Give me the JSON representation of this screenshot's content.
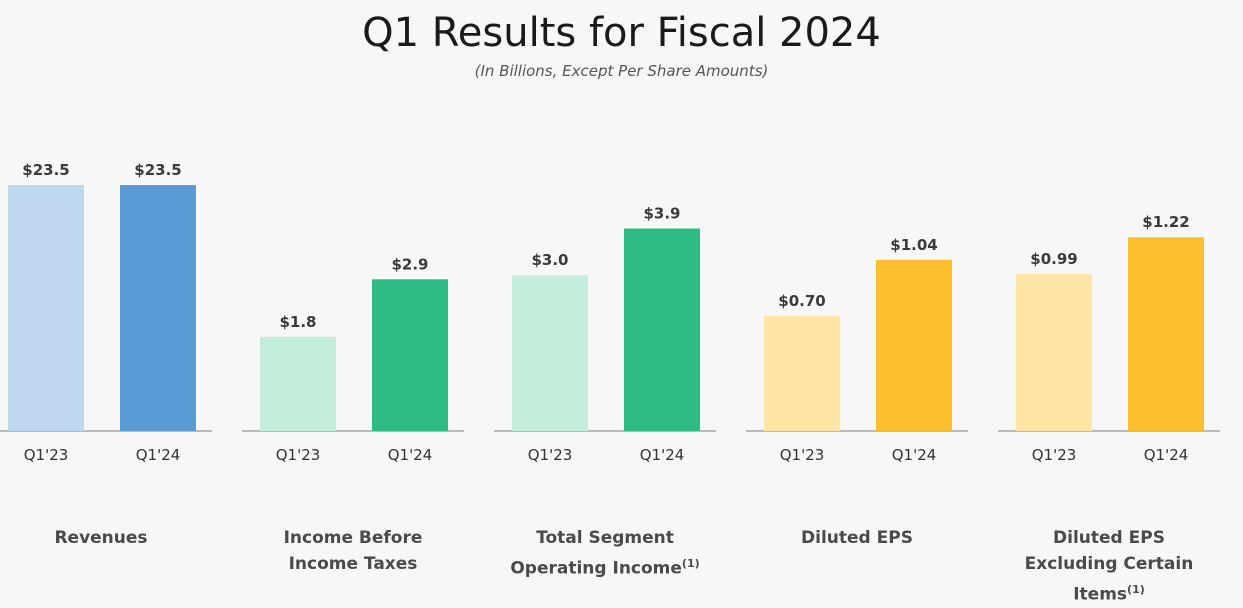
{
  "title": "Q1 Results for Fiscal 2024",
  "subtitle": "(In Billions, Except Per Share Amounts)",
  "chart_data": [
    {
      "type": "bar",
      "name": "Revenues",
      "title_lines": [
        "Revenues"
      ],
      "footnote": "",
      "categories": [
        "Q1'23",
        "Q1'24"
      ],
      "values": [
        23.5,
        23.5
      ],
      "value_labels": [
        "$23.5",
        "$23.5"
      ],
      "colors": [
        "#bdd7ee",
        "#5b9bd5"
      ],
      "ylim": [
        0,
        25.8
      ]
    },
    {
      "type": "bar",
      "name": "Income Before Income Taxes",
      "title_lines": [
        "Income Before",
        "Income Taxes"
      ],
      "footnote": "",
      "categories": [
        "Q1'23",
        "Q1'24"
      ],
      "values": [
        1.8,
        2.9
      ],
      "value_labels": [
        "$1.8",
        "$2.9"
      ],
      "colors": [
        "#c3eedb",
        "#2fbc84"
      ],
      "ylim": [
        0,
        5.16
      ]
    },
    {
      "type": "bar",
      "name": "Total Segment Operating Income",
      "title_lines": [
        "Total Segment",
        "Operating Income"
      ],
      "footnote": "(1)",
      "categories": [
        "Q1'23",
        "Q1'24"
      ],
      "values": [
        3.0,
        3.9
      ],
      "value_labels": [
        "$3.0",
        "$3.9"
      ],
      "colors": [
        "#c3eedb",
        "#2fbc84"
      ],
      "ylim": [
        0,
        5.2
      ]
    },
    {
      "type": "bar",
      "name": "Diluted EPS",
      "title_lines": [
        "Diluted EPS"
      ],
      "footnote": "",
      "categories": [
        "Q1'23",
        "Q1'24"
      ],
      "values": [
        0.7,
        1.04
      ],
      "value_labels": [
        "$0.70",
        "$1.04"
      ],
      "colors": [
        "#ffe6a6",
        "#fdbf2d"
      ],
      "ylim": [
        0,
        1.64
      ]
    },
    {
      "type": "bar",
      "name": "Diluted EPS Excluding Certain Items",
      "title_lines": [
        "Diluted EPS",
        "Excluding Certain Items"
      ],
      "footnote": "(1)",
      "categories": [
        "Q1'23",
        "Q1'24"
      ],
      "values": [
        0.99,
        1.22
      ],
      "value_labels": [
        "$0.99",
        "$1.22"
      ],
      "colors": [
        "#ffe6a6",
        "#fdbf2d"
      ],
      "ylim": [
        0,
        1.7
      ]
    }
  ]
}
